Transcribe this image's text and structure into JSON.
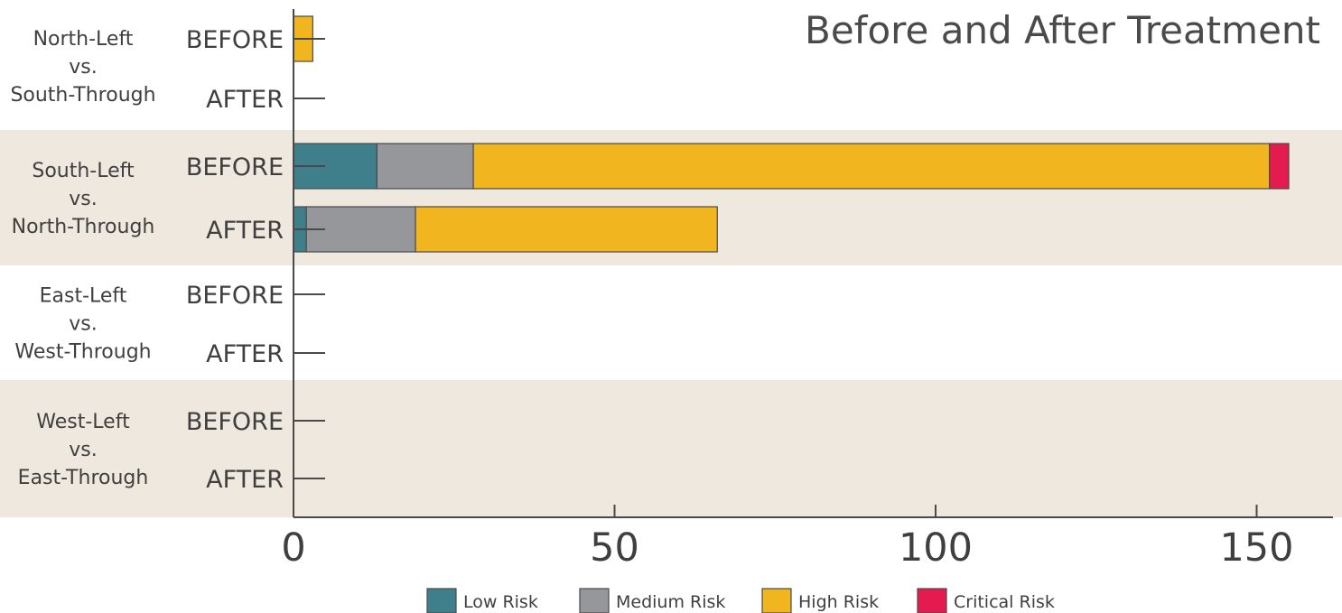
{
  "chart_data": {
    "type": "bar",
    "orientation": "horizontal",
    "stacked": true,
    "title": "Before and After Treatment",
    "xlim": [
      0,
      160
    ],
    "x_ticks": [
      0,
      50,
      100,
      150
    ],
    "x_tick_labels": [
      "0",
      "50",
      "100",
      "150"
    ],
    "groups": [
      {
        "label_lines": [
          "North-Left",
          "vs.",
          "South-Through"
        ],
        "shaded": false,
        "bars": [
          {
            "period": "BEFORE",
            "values": [
              0,
              0,
              3,
              0
            ]
          },
          {
            "period": "AFTER",
            "values": [
              0,
              0,
              0,
              0
            ]
          }
        ]
      },
      {
        "label_lines": [
          "South-Left",
          "vs.",
          "North-Through"
        ],
        "shaded": true,
        "bars": [
          {
            "period": "BEFORE",
            "values": [
              13,
              15,
              124,
              3
            ]
          },
          {
            "period": "AFTER",
            "values": [
              2,
              17,
              47,
              0
            ]
          }
        ]
      },
      {
        "label_lines": [
          "East-Left",
          "vs.",
          "West-Through"
        ],
        "shaded": false,
        "bars": [
          {
            "period": "BEFORE",
            "values": [
              0,
              0,
              0,
              0
            ]
          },
          {
            "period": "AFTER",
            "values": [
              0,
              0,
              0,
              0
            ]
          }
        ]
      },
      {
        "label_lines": [
          "West-Left",
          "vs.",
          "East-Through"
        ],
        "shaded": true,
        "bars": [
          {
            "period": "BEFORE",
            "values": [
              0,
              0,
              0,
              0
            ]
          },
          {
            "period": "AFTER",
            "values": [
              0,
              0,
              0,
              0
            ]
          }
        ]
      }
    ],
    "series": [
      {
        "name": "Low Risk",
        "color": "#3f7f8c"
      },
      {
        "name": "Medium Risk",
        "color": "#96979b"
      },
      {
        "name": "High Risk",
        "color": "#f0b51f"
      },
      {
        "name": "Critical Risk",
        "color": "#e31b4e"
      }
    ],
    "legend_position": "bottom-center",
    "band_color": "#efe8df",
    "grid": false
  }
}
